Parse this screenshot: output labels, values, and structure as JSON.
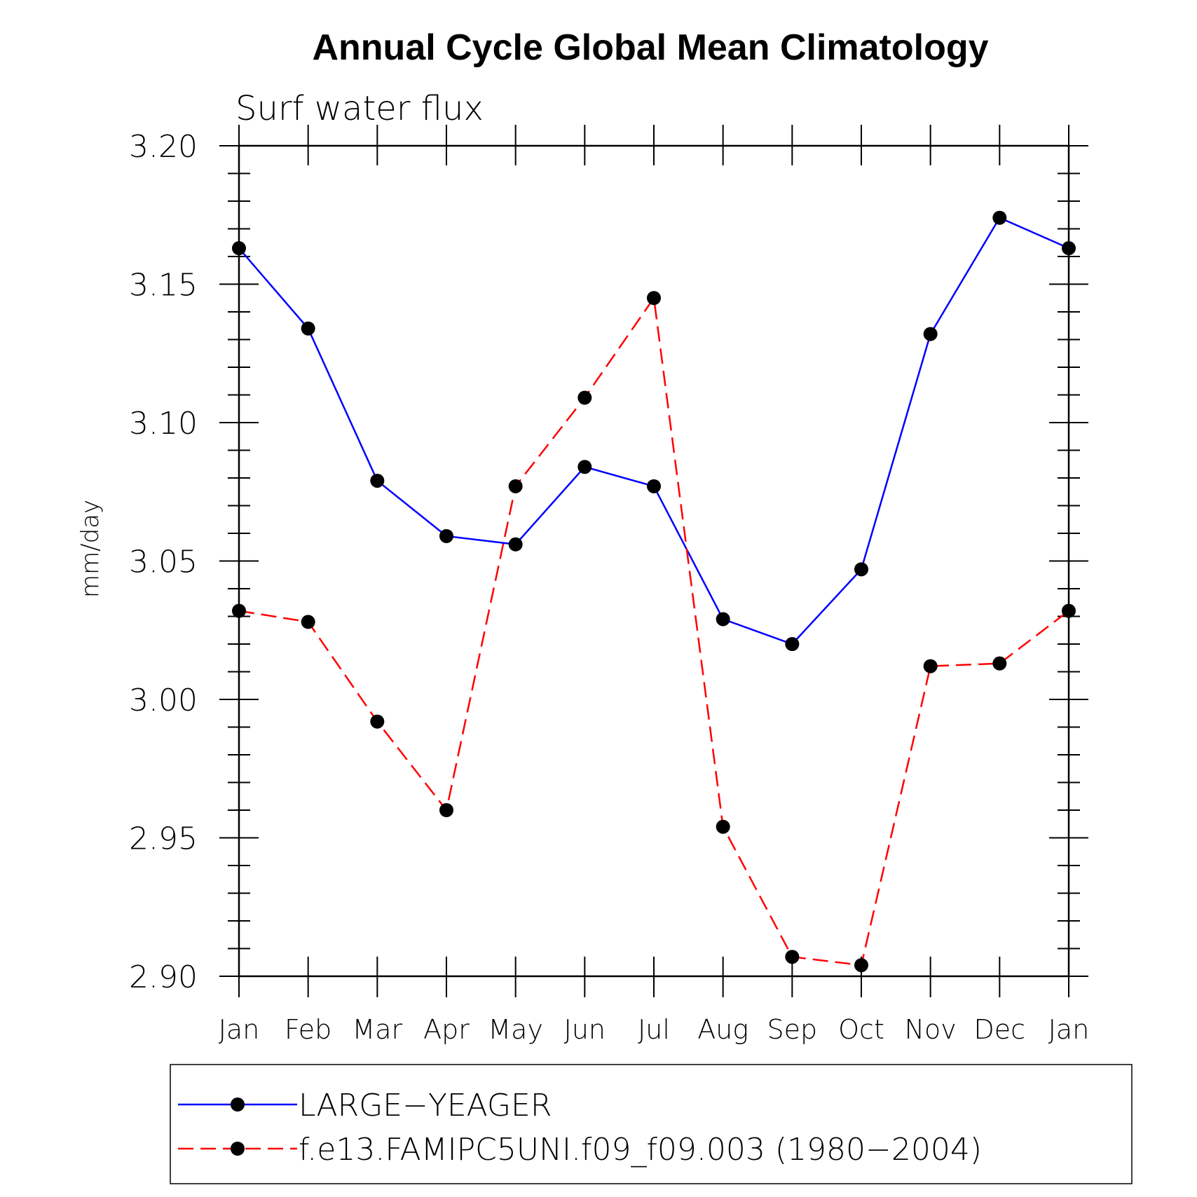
{
  "chart_data": {
    "type": "line",
    "title": "Annual Cycle Global Mean Climatology",
    "subtitle": "Surf water flux",
    "xlabel": "",
    "ylabel": "mm/day",
    "categories": [
      "Jan",
      "Feb",
      "Mar",
      "Apr",
      "May",
      "Jun",
      "Jul",
      "Aug",
      "Sep",
      "Oct",
      "Nov",
      "Dec",
      "Jan"
    ],
    "ylim": [
      2.9,
      3.2
    ],
    "yticks": [
      2.9,
      2.95,
      3.0,
      3.05,
      3.1,
      3.15,
      3.2
    ],
    "ytick_labels": [
      "2.90",
      "2.95",
      "3.00",
      "3.05",
      "3.10",
      "3.15",
      "3.20"
    ],
    "grid": false,
    "legend_position": "bottom",
    "series": [
      {
        "name": "LARGE−YEAGER",
        "color": "#0000ff",
        "line_style": "solid",
        "marker": "circle",
        "values": [
          3.163,
          3.134,
          3.079,
          3.059,
          3.056,
          3.084,
          3.077,
          3.029,
          3.02,
          3.047,
          3.132,
          3.174,
          3.163
        ]
      },
      {
        "name": "f.e13.FAMIPC5UNI.f09_f09.003 (1980−2004)",
        "color": "#ff0000",
        "line_style": "dashed",
        "marker": "circle",
        "values": [
          3.032,
          3.028,
          2.992,
          2.96,
          3.077,
          3.109,
          3.145,
          2.954,
          2.907,
          2.904,
          3.012,
          3.013,
          3.032
        ]
      }
    ]
  }
}
